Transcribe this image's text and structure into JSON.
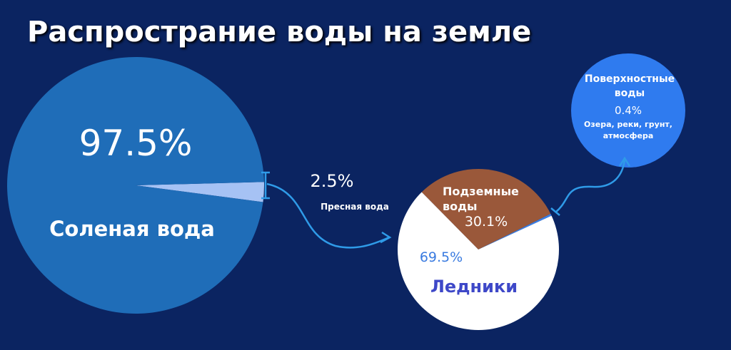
{
  "title": "Распространие воды на земле",
  "chart_data": [
    {
      "type": "pie",
      "labels": [
        "Пресная вода",
        "Соленая вода"
      ],
      "values": [
        2.5,
        97.5
      ],
      "value_labels": [
        "2.5%",
        "97.5%"
      ],
      "colors": [
        "#a6c2f4",
        "#1f6db8"
      ]
    },
    {
      "type": "pie",
      "labels": [
        "Подземные воды",
        "Поверхностные воды",
        "Ледники"
      ],
      "values": [
        30.1,
        0.4,
        69.5
      ],
      "value_labels": [
        "30.1%",
        "0.4%",
        "69.5%"
      ],
      "colors": [
        "#9a583a",
        "#3a7fe6",
        "#ffffff"
      ]
    }
  ],
  "annotation": "Озера, реки, грунт, атмосфера"
}
